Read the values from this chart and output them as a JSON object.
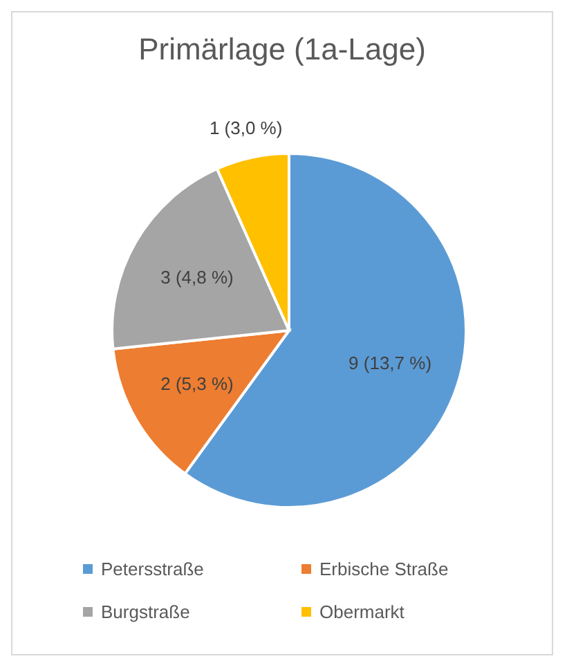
{
  "chart_data": {
    "type": "pie",
    "title": "Primärlage (1a-Lage)",
    "categories": [
      "Petersstraße",
      "Erbische Straße",
      "Burgstraße",
      "Obermarkt"
    ],
    "values": [
      9,
      2,
      3,
      1
    ],
    "colors": [
      "#5b9bd5",
      "#ed7d31",
      "#a5a5a5",
      "#ffc000"
    ],
    "value_labels": [
      "9 (13,7 %)",
      "2 (5,3 %)",
      "3 (4,8 %)",
      "1 (3,0 %)"
    ],
    "legend": "bottom"
  }
}
